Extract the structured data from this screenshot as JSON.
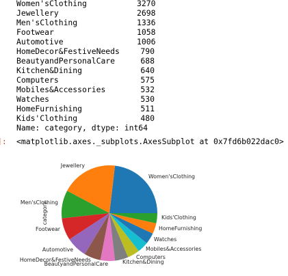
{
  "output_series": {
    "rows": [
      {
        "name": "Women'sClothing",
        "count": "3270"
      },
      {
        "name": "Jewellery",
        "count": "2698"
      },
      {
        "name": "Men'sClothing",
        "count": "1336"
      },
      {
        "name": "Footwear",
        "count": "1058"
      },
      {
        "name": "Automotive",
        "count": "1006"
      },
      {
        "name": "HomeDecor&FestiveNeeds",
        "count": "790"
      },
      {
        "name": "BeautyandPersonalCare",
        "count": "688"
      },
      {
        "name": "Kitchen&Dining",
        "count": "640"
      },
      {
        "name": "Computers",
        "count": "575"
      },
      {
        "name": "Mobiles&Accessories",
        "count": "532"
      },
      {
        "name": "Watches",
        "count": "530"
      },
      {
        "name": "HomeFurnishing",
        "count": "511"
      },
      {
        "name": "Kids'Clothing",
        "count": "480"
      }
    ],
    "footer": "Name: category, dtype: int64"
  },
  "out_cell": {
    "prompt": "]:",
    "repr": "<matplotlib.axes._subplots.AxesSubplot at 0x7fd6b022dac0>"
  },
  "chart_data": {
    "type": "pie",
    "ylabel": "category",
    "slices": [
      {
        "label": "Women'sClothing",
        "value": 3270,
        "color": "#1f77b4"
      },
      {
        "label": "Jewellery",
        "value": 2698,
        "color": "#ff7f0e"
      },
      {
        "label": "Men'sClothing",
        "value": 1336,
        "color": "#2ca02c"
      },
      {
        "label": "Footwear",
        "value": 1058,
        "color": "#d62728"
      },
      {
        "label": "Automotive",
        "value": 1006,
        "color": "#9467bd"
      },
      {
        "label": "HomeDecor&FestiveNeeds",
        "value": 790,
        "color": "#8c564b"
      },
      {
        "label": "BeautyandPersonalCare",
        "value": 688,
        "color": "#e377c2"
      },
      {
        "label": "Kitchen&Dining",
        "value": 640,
        "color": "#7f7f7f"
      },
      {
        "label": "Computers",
        "value": 575,
        "color": "#bcbd22"
      },
      {
        "label": "Mobiles&Accessories",
        "value": 532,
        "color": "#17becf"
      },
      {
        "label": "Watches",
        "value": 530,
        "color": "#1f77b4"
      },
      {
        "label": "HomeFurnishing",
        "value": 511,
        "color": "#ff7f0e"
      },
      {
        "label": "Kids'Clothing",
        "value": 480,
        "color": "#2ca02c"
      }
    ]
  }
}
